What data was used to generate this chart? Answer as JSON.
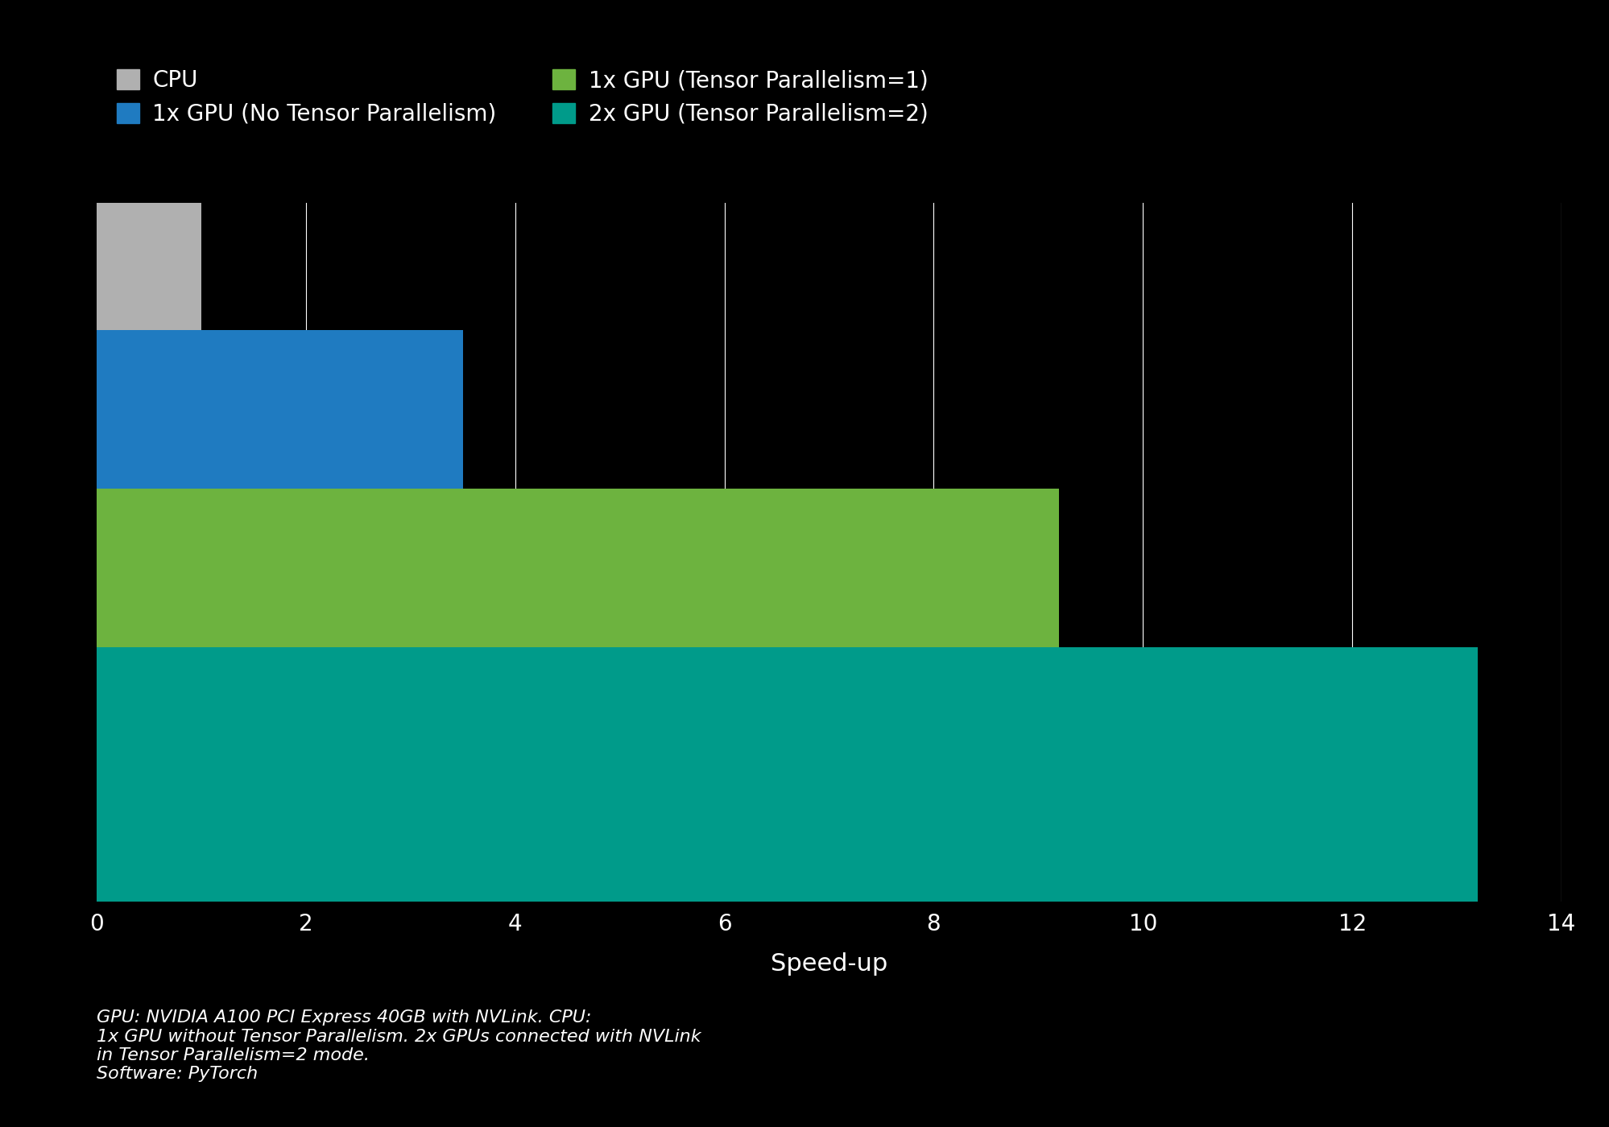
{
  "background_color": "#000000",
  "text_color": "#ffffff",
  "grid_color": "#ffffff",
  "bars": [
    {
      "label": "CPU",
      "value": 1.0,
      "color": "#b0b0b0"
    },
    {
      "label": "1x GPU (No Tensor Parallelism)",
      "value": 3.5,
      "color": "#1f7bc1"
    },
    {
      "label": "1x GPU (Tensor Parallelism=1)",
      "value": 9.2,
      "color": "#6db33f"
    },
    {
      "label": "2x GPU (Tensor Parallelism=2)",
      "value": 13.2,
      "color": "#009b8a"
    }
  ],
  "xlim": [
    0,
    14
  ],
  "xticks": [
    0,
    2,
    4,
    6,
    8,
    10,
    12,
    14
  ],
  "xtick_labels": [
    "0",
    "2",
    "4",
    "6",
    "8",
    "10",
    "12",
    "14"
  ],
  "legend_items": [
    {
      "label": "CPU",
      "color": "#b0b0b0"
    },
    {
      "label": "1x GPU (No Tensor Parallelism)",
      "color": "#1f7bc1"
    },
    {
      "label": "1x GPU (Tensor Parallelism=1)",
      "color": "#6db33f"
    },
    {
      "label": "2x GPU (Tensor Parallelism=2)",
      "color": "#009b8a"
    }
  ],
  "footnote": "GPU: NVIDIA A100 PCI Express 40GB with NVLink. CPU:\n1x GPU without Tensor Parallelism. 2x GPUs connected with NVLink\nin Tensor Parallelism=2 mode.\nSoftware: PyTorch",
  "bar_height": 1.8,
  "tick_fontsize": 20,
  "legend_fontsize": 20,
  "footnote_fontsize": 16,
  "xlabel_fontsize": 22,
  "xlabel": "Speed-up"
}
